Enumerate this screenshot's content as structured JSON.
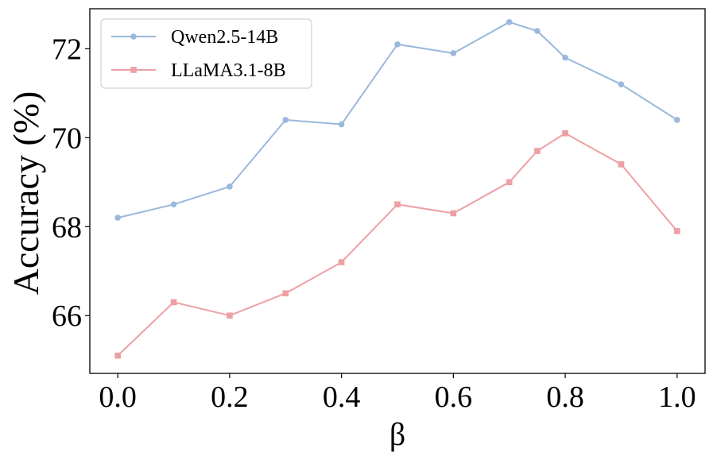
{
  "chart_data": {
    "type": "line",
    "title": "",
    "xlabel": "β",
    "ylabel": "Accuracy (%)",
    "xlim": [
      -0.05,
      1.05
    ],
    "ylim": [
      64.7,
      72.9
    ],
    "xticks": [
      0.0,
      0.2,
      0.4,
      0.6,
      0.8,
      1.0
    ],
    "xtick_labels": [
      "0.0",
      "0.2",
      "0.4",
      "0.6",
      "0.8",
      "1.0"
    ],
    "yticks": [
      66,
      68,
      70,
      72
    ],
    "ytick_labels": [
      "66",
      "68",
      "70",
      "72"
    ],
    "grid": false,
    "legend_position": "top-left",
    "series": [
      {
        "name": "Qwen2.5-14B",
        "color": "#9ab8dc",
        "marker": "circle",
        "x": [
          0.0,
          0.1,
          0.2,
          0.3,
          0.4,
          0.5,
          0.6,
          0.7,
          0.75,
          0.8,
          0.9,
          1.0
        ],
        "values": [
          68.2,
          68.5,
          68.9,
          70.4,
          70.3,
          72.1,
          71.9,
          72.6,
          72.4,
          71.8,
          71.2,
          70.4
        ]
      },
      {
        "name": "LLaMA3.1-8B",
        "color": "#eda0a4",
        "marker": "square",
        "x": [
          0.0,
          0.1,
          0.2,
          0.3,
          0.4,
          0.5,
          0.6,
          0.7,
          0.75,
          0.8,
          0.9,
          1.0
        ],
        "values": [
          65.1,
          66.3,
          66.0,
          66.5,
          67.2,
          68.5,
          68.3,
          69.0,
          69.7,
          70.1,
          69.4,
          67.9
        ]
      }
    ]
  }
}
